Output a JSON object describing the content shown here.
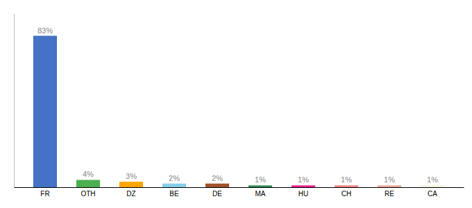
{
  "chart_data": {
    "type": "bar",
    "categories": [
      "FR",
      "OTH",
      "DZ",
      "BE",
      "DE",
      "MA",
      "HU",
      "CH",
      "RE",
      "CA"
    ],
    "values": [
      83,
      4,
      3,
      2,
      2,
      1,
      1,
      1,
      1,
      1
    ],
    "value_labels": [
      "83%",
      "4%",
      "3%",
      "2%",
      "2%",
      "1%",
      "1%",
      "1%",
      "1%",
      "1%"
    ],
    "data_labels": true,
    "colors": [
      "#4472C4",
      "#4CAF50",
      "#FFA500",
      "#87CEEB",
      "#A0522D",
      "#2E8B57",
      "#E91E8C",
      "#F08080",
      "#E8A898",
      "#F5F5DC"
    ],
    "ylim": [
      0,
      95
    ],
    "tick_labels": "x",
    "grid": false
  }
}
